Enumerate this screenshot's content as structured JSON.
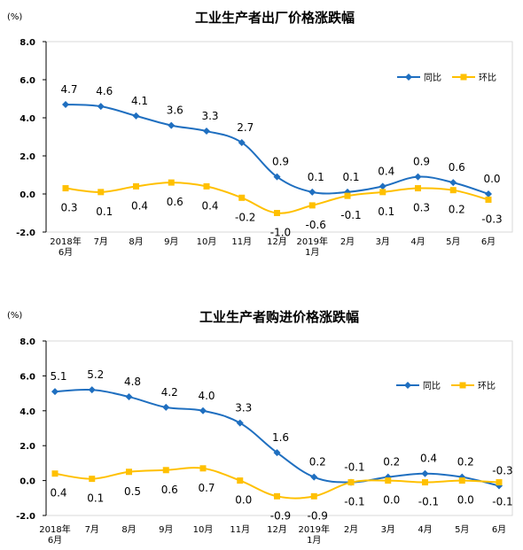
{
  "charts": [
    {
      "unit": "(%)",
      "title": "工业生产者出厂价格涨跌幅",
      "legend": [
        "同比",
        "环比"
      ]
    },
    {
      "unit": "(%)",
      "title": "工业生产者购进价格涨跌幅",
      "legend": [
        "同比",
        "环比"
      ]
    }
  ],
  "chart_data": [
    {
      "type": "line",
      "title": "工业生产者出厂价格涨跌幅",
      "ylabel": "(%)",
      "ylim": [
        -2.0,
        8.0
      ],
      "yticks": [
        "8.0",
        "6.0",
        "4.0",
        "2.0",
        "0.0",
        "-2.0"
      ],
      "categories": [
        [
          "2018年",
          "6月"
        ],
        [
          "7月"
        ],
        [
          "8月"
        ],
        [
          "9月"
        ],
        [
          "10月"
        ],
        [
          "11月"
        ],
        [
          "12月"
        ],
        [
          "2019年",
          "1月"
        ],
        [
          "2月"
        ],
        [
          "3月"
        ],
        [
          "4月"
        ],
        [
          "5月"
        ],
        [
          "6月"
        ]
      ],
      "legend_position": "top-right",
      "series": [
        {
          "name": "同比",
          "color": "#1f6fc0",
          "marker": "diamond",
          "values": [
            4.7,
            4.6,
            4.1,
            3.6,
            3.3,
            2.7,
            0.9,
            0.1,
            0.1,
            0.4,
            0.9,
            0.6,
            0.0
          ],
          "labels": [
            "4.7",
            "4.6",
            "4.1",
            "3.6",
            "3.3",
            "2.7",
            "0.9",
            "0.1",
            "0.1",
            "0.4",
            "0.9",
            "0.6",
            "0.0"
          ]
        },
        {
          "name": "环比",
          "color": "#ffc000",
          "marker": "square",
          "values": [
            0.3,
            0.1,
            0.4,
            0.6,
            0.4,
            -0.2,
            -1.0,
            -0.6,
            -0.1,
            0.1,
            0.3,
            0.2,
            -0.3
          ],
          "labels": [
            "0.3",
            "0.1",
            "0.4",
            "0.6",
            "0.4",
            "-0.2",
            "-1.0",
            "-0.6",
            "-0.1",
            "0.1",
            "0.3",
            "0.2",
            "-0.3"
          ]
        }
      ]
    },
    {
      "type": "line",
      "title": "工业生产者购进价格涨跌幅",
      "ylabel": "(%)",
      "ylim": [
        -2.0,
        8.0
      ],
      "yticks": [
        "8.0",
        "6.0",
        "4.0",
        "2.0",
        "0.0",
        "-2.0"
      ],
      "categories": [
        [
          "2018年",
          "6月"
        ],
        [
          "7月"
        ],
        [
          "8月"
        ],
        [
          "9月"
        ],
        [
          "10月"
        ],
        [
          "11月"
        ],
        [
          "12月"
        ],
        [
          "2019年",
          "1月"
        ],
        [
          "2月"
        ],
        [
          "3月"
        ],
        [
          "4月"
        ],
        [
          "5月"
        ],
        [
          "6月"
        ]
      ],
      "legend_position": "top-right",
      "series": [
        {
          "name": "同比",
          "color": "#1f6fc0",
          "marker": "diamond",
          "values": [
            5.1,
            5.2,
            4.8,
            4.2,
            4.0,
            3.3,
            1.6,
            0.2,
            -0.1,
            0.2,
            0.4,
            0.2,
            -0.3
          ],
          "labels": [
            "5.1",
            "5.2",
            "4.8",
            "4.2",
            "4.0",
            "3.3",
            "1.6",
            "0.2",
            "-0.1",
            "0.2",
            "0.4",
            "0.2",
            "-0.3"
          ]
        },
        {
          "name": "环比",
          "color": "#ffc000",
          "marker": "square",
          "values": [
            0.4,
            0.1,
            0.5,
            0.6,
            0.7,
            0.0,
            -0.9,
            -0.9,
            -0.1,
            0.0,
            -0.1,
            0.0,
            -0.1
          ],
          "labels": [
            "0.4",
            "0.1",
            "0.5",
            "0.6",
            "0.7",
            "0.0",
            "-0.9",
            "-0.9",
            "-0.1",
            "0.0",
            "-0.1",
            "0.0",
            "-0.1"
          ]
        }
      ]
    }
  ]
}
